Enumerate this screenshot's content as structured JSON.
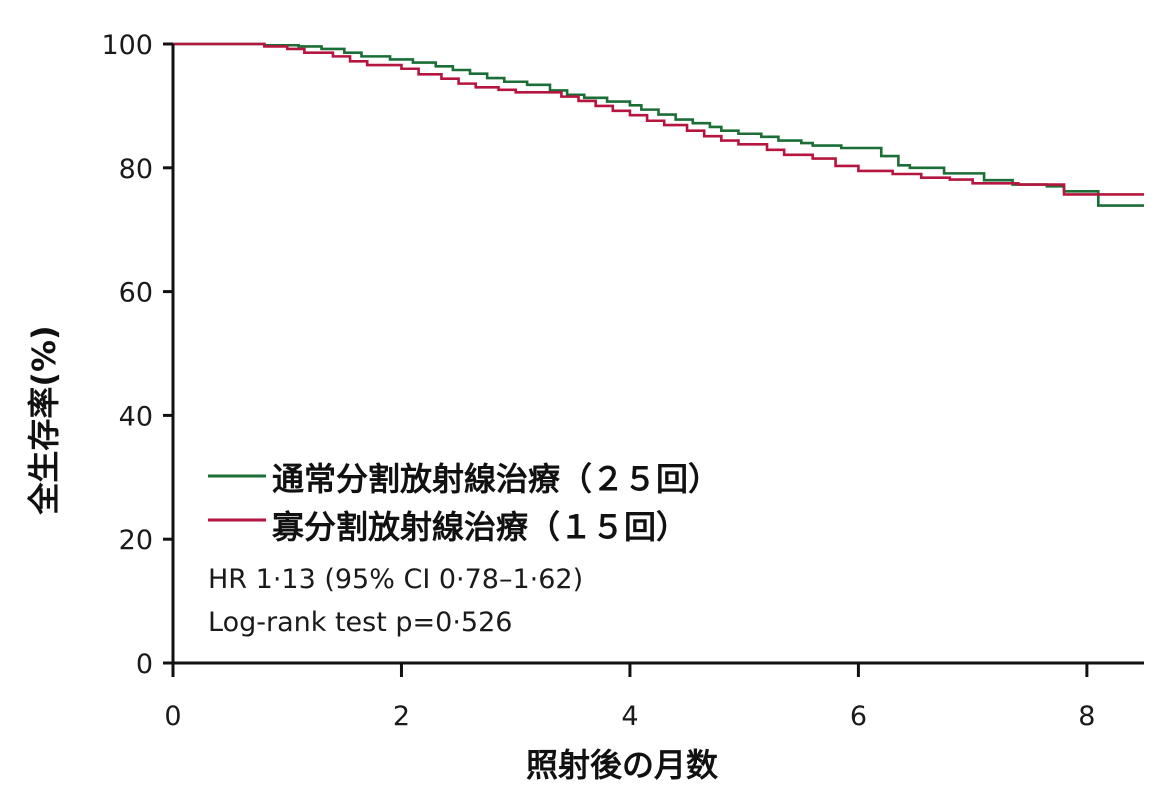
{
  "chart_data": {
    "type": "line",
    "step": true,
    "xlabel": "照射後の月数",
    "ylabel": "全生存率(%)",
    "xlim": [
      0,
      8.5
    ],
    "ylim": [
      0,
      100
    ],
    "xticks": [
      0,
      2,
      4,
      6,
      8
    ],
    "yticks": [
      0,
      20,
      40,
      60,
      80,
      100
    ],
    "grid": false,
    "legend_position": "lower-left",
    "series": [
      {
        "name": "通常分割放射線治療（２５回）",
        "color": "#1a6e36",
        "x": [
          0,
          0.8,
          1.1,
          1.3,
          1.5,
          1.65,
          1.9,
          2.1,
          2.3,
          2.45,
          2.6,
          2.75,
          2.9,
          3.1,
          3.3,
          3.45,
          3.6,
          3.8,
          4.0,
          4.1,
          4.25,
          4.4,
          4.55,
          4.7,
          4.8,
          4.95,
          5.15,
          5.3,
          5.5,
          5.6,
          5.85,
          6.2,
          6.35,
          6.45,
          6.75,
          7.1,
          7.35,
          7.65,
          7.8,
          8.1,
          8.5
        ],
        "y": [
          100,
          99.8,
          99.6,
          99.2,
          98.6,
          98.0,
          97.5,
          97.0,
          96.4,
          95.8,
          95.2,
          94.5,
          93.9,
          93.4,
          92.5,
          91.8,
          91.3,
          90.7,
          90.1,
          89.4,
          88.6,
          87.8,
          87.2,
          86.6,
          86.0,
          85.5,
          85.0,
          84.4,
          84.0,
          83.6,
          83.2,
          81.9,
          80.4,
          80.0,
          79.1,
          78.0,
          77.3,
          77.0,
          76.2,
          73.9,
          73.9
        ]
      },
      {
        "name": "寡分割放射線治療（１５回）",
        "color": "#b5153e",
        "x": [
          0,
          0.8,
          1.0,
          1.15,
          1.4,
          1.55,
          1.7,
          2.0,
          2.15,
          2.35,
          2.5,
          2.65,
          2.85,
          3.0,
          3.4,
          3.55,
          3.7,
          3.85,
          4.0,
          4.15,
          4.3,
          4.5,
          4.65,
          4.8,
          4.95,
          5.2,
          5.35,
          5.6,
          5.8,
          6.0,
          6.3,
          6.55,
          6.8,
          7.0,
          7.4,
          7.8,
          8.1,
          8.5
        ],
        "y": [
          100,
          99.6,
          99.2,
          98.6,
          98.0,
          97.2,
          96.6,
          96.0,
          95.1,
          94.4,
          93.6,
          93.0,
          92.6,
          92.2,
          91.5,
          90.8,
          90.0,
          89.2,
          88.5,
          87.6,
          86.9,
          86.0,
          85.1,
          84.4,
          83.8,
          82.9,
          82.1,
          81.5,
          80.3,
          79.5,
          79.0,
          78.4,
          78.1,
          77.5,
          77.3,
          75.7,
          75.7,
          75.7
        ]
      }
    ],
    "annotations": [
      "HR 1·13 (95% CI 0·78–1·62)",
      "Log-rank test p=0·526"
    ]
  }
}
